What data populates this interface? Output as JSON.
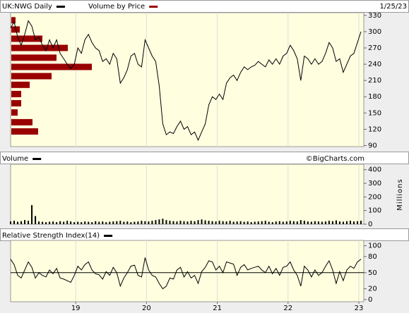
{
  "chart_data": [
    {
      "type": "line",
      "date": "1/25/23",
      "xlim": [
        2018.08,
        2023.07
      ],
      "ylim": [
        88,
        335
      ],
      "yticks": [
        90,
        120,
        150,
        180,
        210,
        240,
        270,
        300,
        330
      ],
      "x": [
        2018.08,
        2018.13,
        2018.18,
        2018.23,
        2018.28,
        2018.33,
        2018.38,
        2018.43,
        2018.48,
        2018.53,
        2018.58,
        2018.63,
        2018.68,
        2018.73,
        2018.78,
        2018.83,
        2018.88,
        2018.93,
        2018.98,
        2019.03,
        2019.08,
        2019.13,
        2019.18,
        2019.23,
        2019.28,
        2019.33,
        2019.38,
        2019.43,
        2019.48,
        2019.53,
        2019.58,
        2019.63,
        2019.68,
        2019.73,
        2019.78,
        2019.83,
        2019.88,
        2019.93,
        2019.98,
        2020.03,
        2020.08,
        2020.13,
        2020.18,
        2020.23,
        2020.28,
        2020.33,
        2020.38,
        2020.43,
        2020.48,
        2020.53,
        2020.58,
        2020.63,
        2020.68,
        2020.73,
        2020.78,
        2020.83,
        2020.88,
        2020.93,
        2020.98,
        2021.03,
        2021.08,
        2021.13,
        2021.18,
        2021.23,
        2021.28,
        2021.33,
        2021.38,
        2021.43,
        2021.48,
        2021.53,
        2021.58,
        2021.63,
        2021.68,
        2021.73,
        2021.78,
        2021.83,
        2021.88,
        2021.93,
        2021.98,
        2022.03,
        2022.08,
        2022.13,
        2022.18,
        2022.23,
        2022.28,
        2022.33,
        2022.38,
        2022.43,
        2022.48,
        2022.53,
        2022.58,
        2022.63,
        2022.68,
        2022.73,
        2022.78,
        2022.83,
        2022.88,
        2022.93,
        2022.98,
        2023.03
      ],
      "series": [
        {
          "name": "UK:NWG Daily",
          "color": "#000000",
          "values": [
            307,
            318,
            290,
            275,
            295,
            320,
            310,
            285,
            290,
            275,
            265,
            285,
            270,
            285,
            260,
            250,
            240,
            232,
            240,
            270,
            260,
            285,
            295,
            280,
            270,
            265,
            245,
            250,
            240,
            260,
            250,
            205,
            215,
            230,
            255,
            260,
            240,
            235,
            285,
            270,
            255,
            245,
            200,
            130,
            110,
            115,
            112,
            125,
            135,
            120,
            125,
            110,
            115,
            100,
            115,
            130,
            165,
            180,
            175,
            185,
            175,
            205,
            215,
            220,
            210,
            225,
            235,
            230,
            235,
            238,
            245,
            240,
            235,
            248,
            240,
            250,
            240,
            255,
            260,
            275,
            265,
            250,
            210,
            255,
            250,
            240,
            250,
            240,
            245,
            260,
            280,
            270,
            245,
            250,
            225,
            240,
            255,
            260,
            280,
            300
          ]
        }
      ],
      "volume_by_price": {
        "name": "Volume by Price",
        "color": "#990000",
        "prices": [
          321,
          304,
          287,
          270,
          252,
          235,
          218,
          202,
          185,
          168,
          151,
          133,
          116
        ],
        "values": [
          6,
          12,
          44,
          80,
          64,
          114,
          57,
          26,
          14,
          14,
          9,
          30,
          38
        ]
      }
    },
    {
      "type": "bar",
      "title": "Volume",
      "source": "©BigCharts.com",
      "y_label": "Millions",
      "color": "#000000",
      "xlim": [
        2018.08,
        2023.07
      ],
      "ylim": [
        0,
        440
      ],
      "yticks": [
        0,
        100,
        200,
        300,
        400
      ],
      "x": [
        2018.08,
        2018.13,
        2018.18,
        2018.23,
        2018.28,
        2018.33,
        2018.38,
        2018.43,
        2018.48,
        2018.53,
        2018.58,
        2018.63,
        2018.68,
        2018.73,
        2018.78,
        2018.83,
        2018.88,
        2018.93,
        2018.98,
        2019.03,
        2019.08,
        2019.13,
        2019.18,
        2019.23,
        2019.28,
        2019.33,
        2019.38,
        2019.43,
        2019.48,
        2019.53,
        2019.58,
        2019.63,
        2019.68,
        2019.73,
        2019.78,
        2019.83,
        2019.88,
        2019.93,
        2019.98,
        2020.03,
        2020.08,
        2020.13,
        2020.18,
        2020.23,
        2020.28,
        2020.33,
        2020.38,
        2020.43,
        2020.48,
        2020.53,
        2020.58,
        2020.63,
        2020.68,
        2020.73,
        2020.78,
        2020.83,
        2020.88,
        2020.93,
        2020.98,
        2021.03,
        2021.08,
        2021.13,
        2021.18,
        2021.23,
        2021.28,
        2021.33,
        2021.38,
        2021.43,
        2021.48,
        2021.53,
        2021.58,
        2021.63,
        2021.68,
        2021.73,
        2021.78,
        2021.83,
        2021.88,
        2021.93,
        2021.98,
        2022.03,
        2022.08,
        2022.13,
        2022.18,
        2022.23,
        2022.28,
        2022.33,
        2022.38,
        2022.43,
        2022.48,
        2022.53,
        2022.58,
        2022.63,
        2022.68,
        2022.73,
        2022.78,
        2022.83,
        2022.88,
        2022.93,
        2022.98,
        2023.03
      ],
      "values": [
        20,
        25,
        18,
        22,
        30,
        25,
        140,
        60,
        20,
        18,
        15,
        18,
        20,
        15,
        22,
        18,
        25,
        20,
        15,
        18,
        15,
        20,
        18,
        15,
        22,
        18,
        20,
        15,
        18,
        20,
        22,
        25,
        18,
        20,
        15,
        18,
        20,
        25,
        22,
        20,
        25,
        30,
        35,
        40,
        30,
        25,
        22,
        20,
        25,
        22,
        20,
        25,
        22,
        30,
        35,
        28,
        25,
        22,
        20,
        25,
        22,
        20,
        25,
        18,
        20,
        22,
        18,
        20,
        15,
        18,
        20,
        22,
        25,
        18,
        15,
        20,
        22,
        18,
        20,
        25,
        22,
        20,
        30,
        25,
        20,
        18,
        22,
        20,
        18,
        20,
        25,
        22,
        28,
        20,
        18,
        22,
        25,
        20,
        22,
        25
      ]
    },
    {
      "type": "line",
      "title": "Relative Strength Index(14)",
      "color": "#000000",
      "midline": 50,
      "xlim": [
        2018.08,
        2023.07
      ],
      "ylim": [
        -4,
        110
      ],
      "yticks": [
        0,
        20,
        50,
        80,
        100
      ],
      "xticks": [
        {
          "value": 2019,
          "label": "19"
        },
        {
          "value": 2020,
          "label": "20"
        },
        {
          "value": 2021,
          "label": "21"
        },
        {
          "value": 2022,
          "label": "22"
        },
        {
          "value": 2023,
          "label": "23"
        }
      ],
      "x": [
        2018.08,
        2018.13,
        2018.18,
        2018.23,
        2018.28,
        2018.33,
        2018.38,
        2018.43,
        2018.48,
        2018.53,
        2018.58,
        2018.63,
        2018.68,
        2018.73,
        2018.78,
        2018.83,
        2018.88,
        2018.93,
        2018.98,
        2019.03,
        2019.08,
        2019.13,
        2019.18,
        2019.23,
        2019.28,
        2019.33,
        2019.38,
        2019.43,
        2019.48,
        2019.53,
        2019.58,
        2019.63,
        2019.68,
        2019.73,
        2019.78,
        2019.83,
        2019.88,
        2019.93,
        2019.98,
        2020.03,
        2020.08,
        2020.13,
        2020.18,
        2020.23,
        2020.28,
        2020.33,
        2020.38,
        2020.43,
        2020.48,
        2020.53,
        2020.58,
        2020.63,
        2020.68,
        2020.73,
        2020.78,
        2020.83,
        2020.88,
        2020.93,
        2020.98,
        2021.03,
        2021.08,
        2021.13,
        2021.18,
        2021.23,
        2021.28,
        2021.33,
        2021.38,
        2021.43,
        2021.48,
        2021.53,
        2021.58,
        2021.63,
        2021.68,
        2021.73,
        2021.78,
        2021.83,
        2021.88,
        2021.93,
        2021.98,
        2022.03,
        2022.08,
        2022.13,
        2022.18,
        2022.23,
        2022.28,
        2022.33,
        2022.38,
        2022.43,
        2022.48,
        2022.53,
        2022.58,
        2022.63,
        2022.68,
        2022.73,
        2022.78,
        2022.83,
        2022.88,
        2022.93,
        2022.98,
        2023.03
      ],
      "values": [
        75,
        65,
        45,
        40,
        55,
        70,
        60,
        40,
        50,
        45,
        42,
        55,
        48,
        58,
        40,
        38,
        35,
        32,
        45,
        62,
        55,
        65,
        70,
        55,
        48,
        46,
        38,
        52,
        45,
        60,
        50,
        25,
        40,
        50,
        62,
        64,
        45,
        42,
        78,
        55,
        45,
        42,
        30,
        20,
        25,
        40,
        38,
        55,
        60,
        42,
        52,
        40,
        45,
        30,
        52,
        60,
        72,
        70,
        55,
        62,
        50,
        70,
        68,
        66,
        45,
        60,
        65,
        55,
        58,
        60,
        62,
        55,
        50,
        62,
        48,
        58,
        45,
        60,
        62,
        70,
        55,
        45,
        25,
        62,
        55,
        42,
        55,
        45,
        50,
        62,
        72,
        55,
        30,
        52,
        35,
        55,
        62,
        58,
        70,
        75
      ]
    }
  ]
}
